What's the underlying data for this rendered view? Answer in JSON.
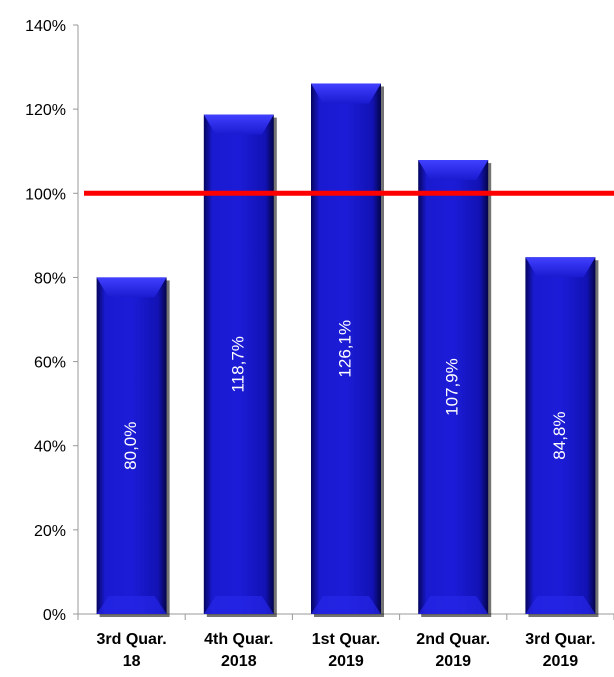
{
  "chart_data": {
    "type": "bar",
    "title": "",
    "xlabel": "",
    "ylabel": "",
    "categories": [
      [
        "3rd Quar.",
        "18"
      ],
      [
        "4th Quar.",
        "2018"
      ],
      [
        "1st Quar.",
        "2019"
      ],
      [
        "2nd Quar.",
        "2019"
      ],
      [
        "3rd Quar.",
        "2019"
      ]
    ],
    "values": [
      80.0,
      118.7,
      126.1,
      107.9,
      84.8
    ],
    "data_labels": [
      "80,0%",
      "118,7%",
      "126,1%",
      "107,9%",
      "84,8%"
    ],
    "ylim": [
      0,
      140
    ],
    "y_ticks": [
      0,
      20,
      40,
      60,
      80,
      100,
      120,
      140
    ],
    "y_tick_labels": [
      "0%",
      "20%",
      "40%",
      "60%",
      "80%",
      "100%",
      "120%",
      "140%"
    ],
    "reference_line": {
      "value": 100,
      "color": "#ff0000"
    },
    "grid": false,
    "legend": "none",
    "colors": {
      "bar": "#1010b0",
      "bar_light": "#3a3aff",
      "bar_dark": "#00006a",
      "axis": "#999999",
      "reference": "#ff0000"
    }
  }
}
